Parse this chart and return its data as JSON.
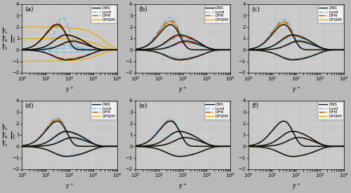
{
  "subplots": [
    {
      "label": "(a)"
    },
    {
      "label": "(b)"
    },
    {
      "label": "(c)"
    },
    {
      "label": "(d)"
    },
    {
      "label": "(e)"
    },
    {
      "label": "(f)"
    }
  ],
  "xlim": [
    1.0,
    10000.0
  ],
  "ylim": [
    -2.0,
    4.0
  ],
  "yticks": [
    -2,
    -1,
    0,
    1,
    2,
    3,
    4
  ],
  "colors": {
    "DNS": "#111111",
    "Lund": "#55bbee",
    "DFM": "#cc3300",
    "DFSEM": "#e8a800"
  },
  "bg_color": "#c8c8c8",
  "grid_color": "#e8e8e8",
  "fig_facecolor": "#b8b8b8"
}
